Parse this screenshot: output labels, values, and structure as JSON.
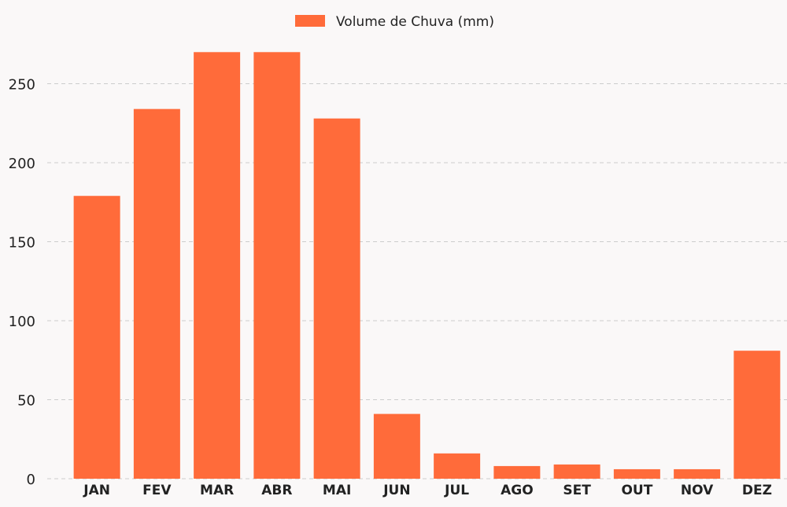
{
  "chart_data": {
    "type": "bar",
    "categories": [
      "JAN",
      "FEV",
      "MAR",
      "ABR",
      "MAI",
      "JUN",
      "JUL",
      "AGO",
      "SET",
      "OUT",
      "NOV",
      "DEZ"
    ],
    "series": [
      {
        "name": "Volume de Chuva (mm)",
        "values": [
          179,
          234,
          270,
          270,
          228,
          41,
          16,
          8,
          9,
          6,
          6,
          81
        ],
        "color": "#ff6b3a"
      }
    ],
    "title": "",
    "xlabel": "",
    "ylabel": "",
    "ylim": [
      0,
      280
    ],
    "yticks": [
      0,
      50,
      100,
      150,
      200,
      250
    ],
    "grid": "horizontal-dashed",
    "legend_position": "top-center",
    "background_color": "#faf8f8",
    "grid_color": "#cccccc"
  }
}
